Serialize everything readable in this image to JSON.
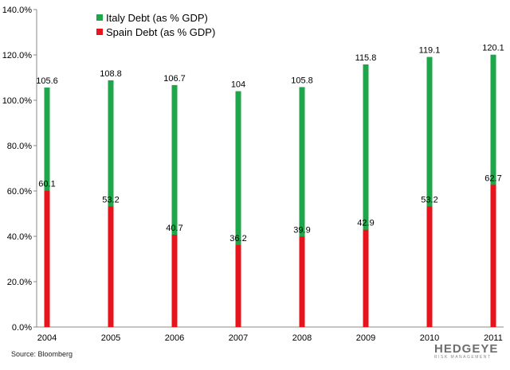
{
  "chart_data": {
    "type": "bar",
    "categories": [
      "2004",
      "2005",
      "2006",
      "2007",
      "2008",
      "2009",
      "2010",
      "2011"
    ],
    "series": [
      {
        "name": "Italy Debt (as % GDP)",
        "color": "#1fa64a",
        "values": [
          105.6,
          108.8,
          106.7,
          104,
          105.8,
          115.8,
          119.1,
          120.1
        ],
        "labels": [
          "105.6",
          "108.8",
          "106.7",
          "104",
          "105.8",
          "115.8",
          "119.1",
          "120.1"
        ]
      },
      {
        "name": "Spain Debt (as % GDP)",
        "color": "#e8141b",
        "values": [
          60.1,
          53.2,
          40.7,
          36.2,
          39.9,
          42.9,
          53.2,
          62.7
        ],
        "labels": [
          "60.1",
          "53.2",
          "40.7",
          "36.2",
          "39.9",
          "42.9",
          "53.2",
          "62.7"
        ]
      }
    ],
    "ylim": [
      0,
      140
    ],
    "yticks": [
      0,
      20,
      40,
      60,
      80,
      100,
      120,
      140
    ],
    "ytick_labels": [
      "0.0%",
      "20.0%",
      "40.0%",
      "60.0%",
      "80.0%",
      "100.0%",
      "120.0%",
      "140.0%"
    ],
    "legend_position": "top-left",
    "grid": false
  },
  "footer": {
    "source": "Source: Bloomberg",
    "brand": "HEDGEYE",
    "brand_tagline": "RISK MANAGEMENT"
  }
}
